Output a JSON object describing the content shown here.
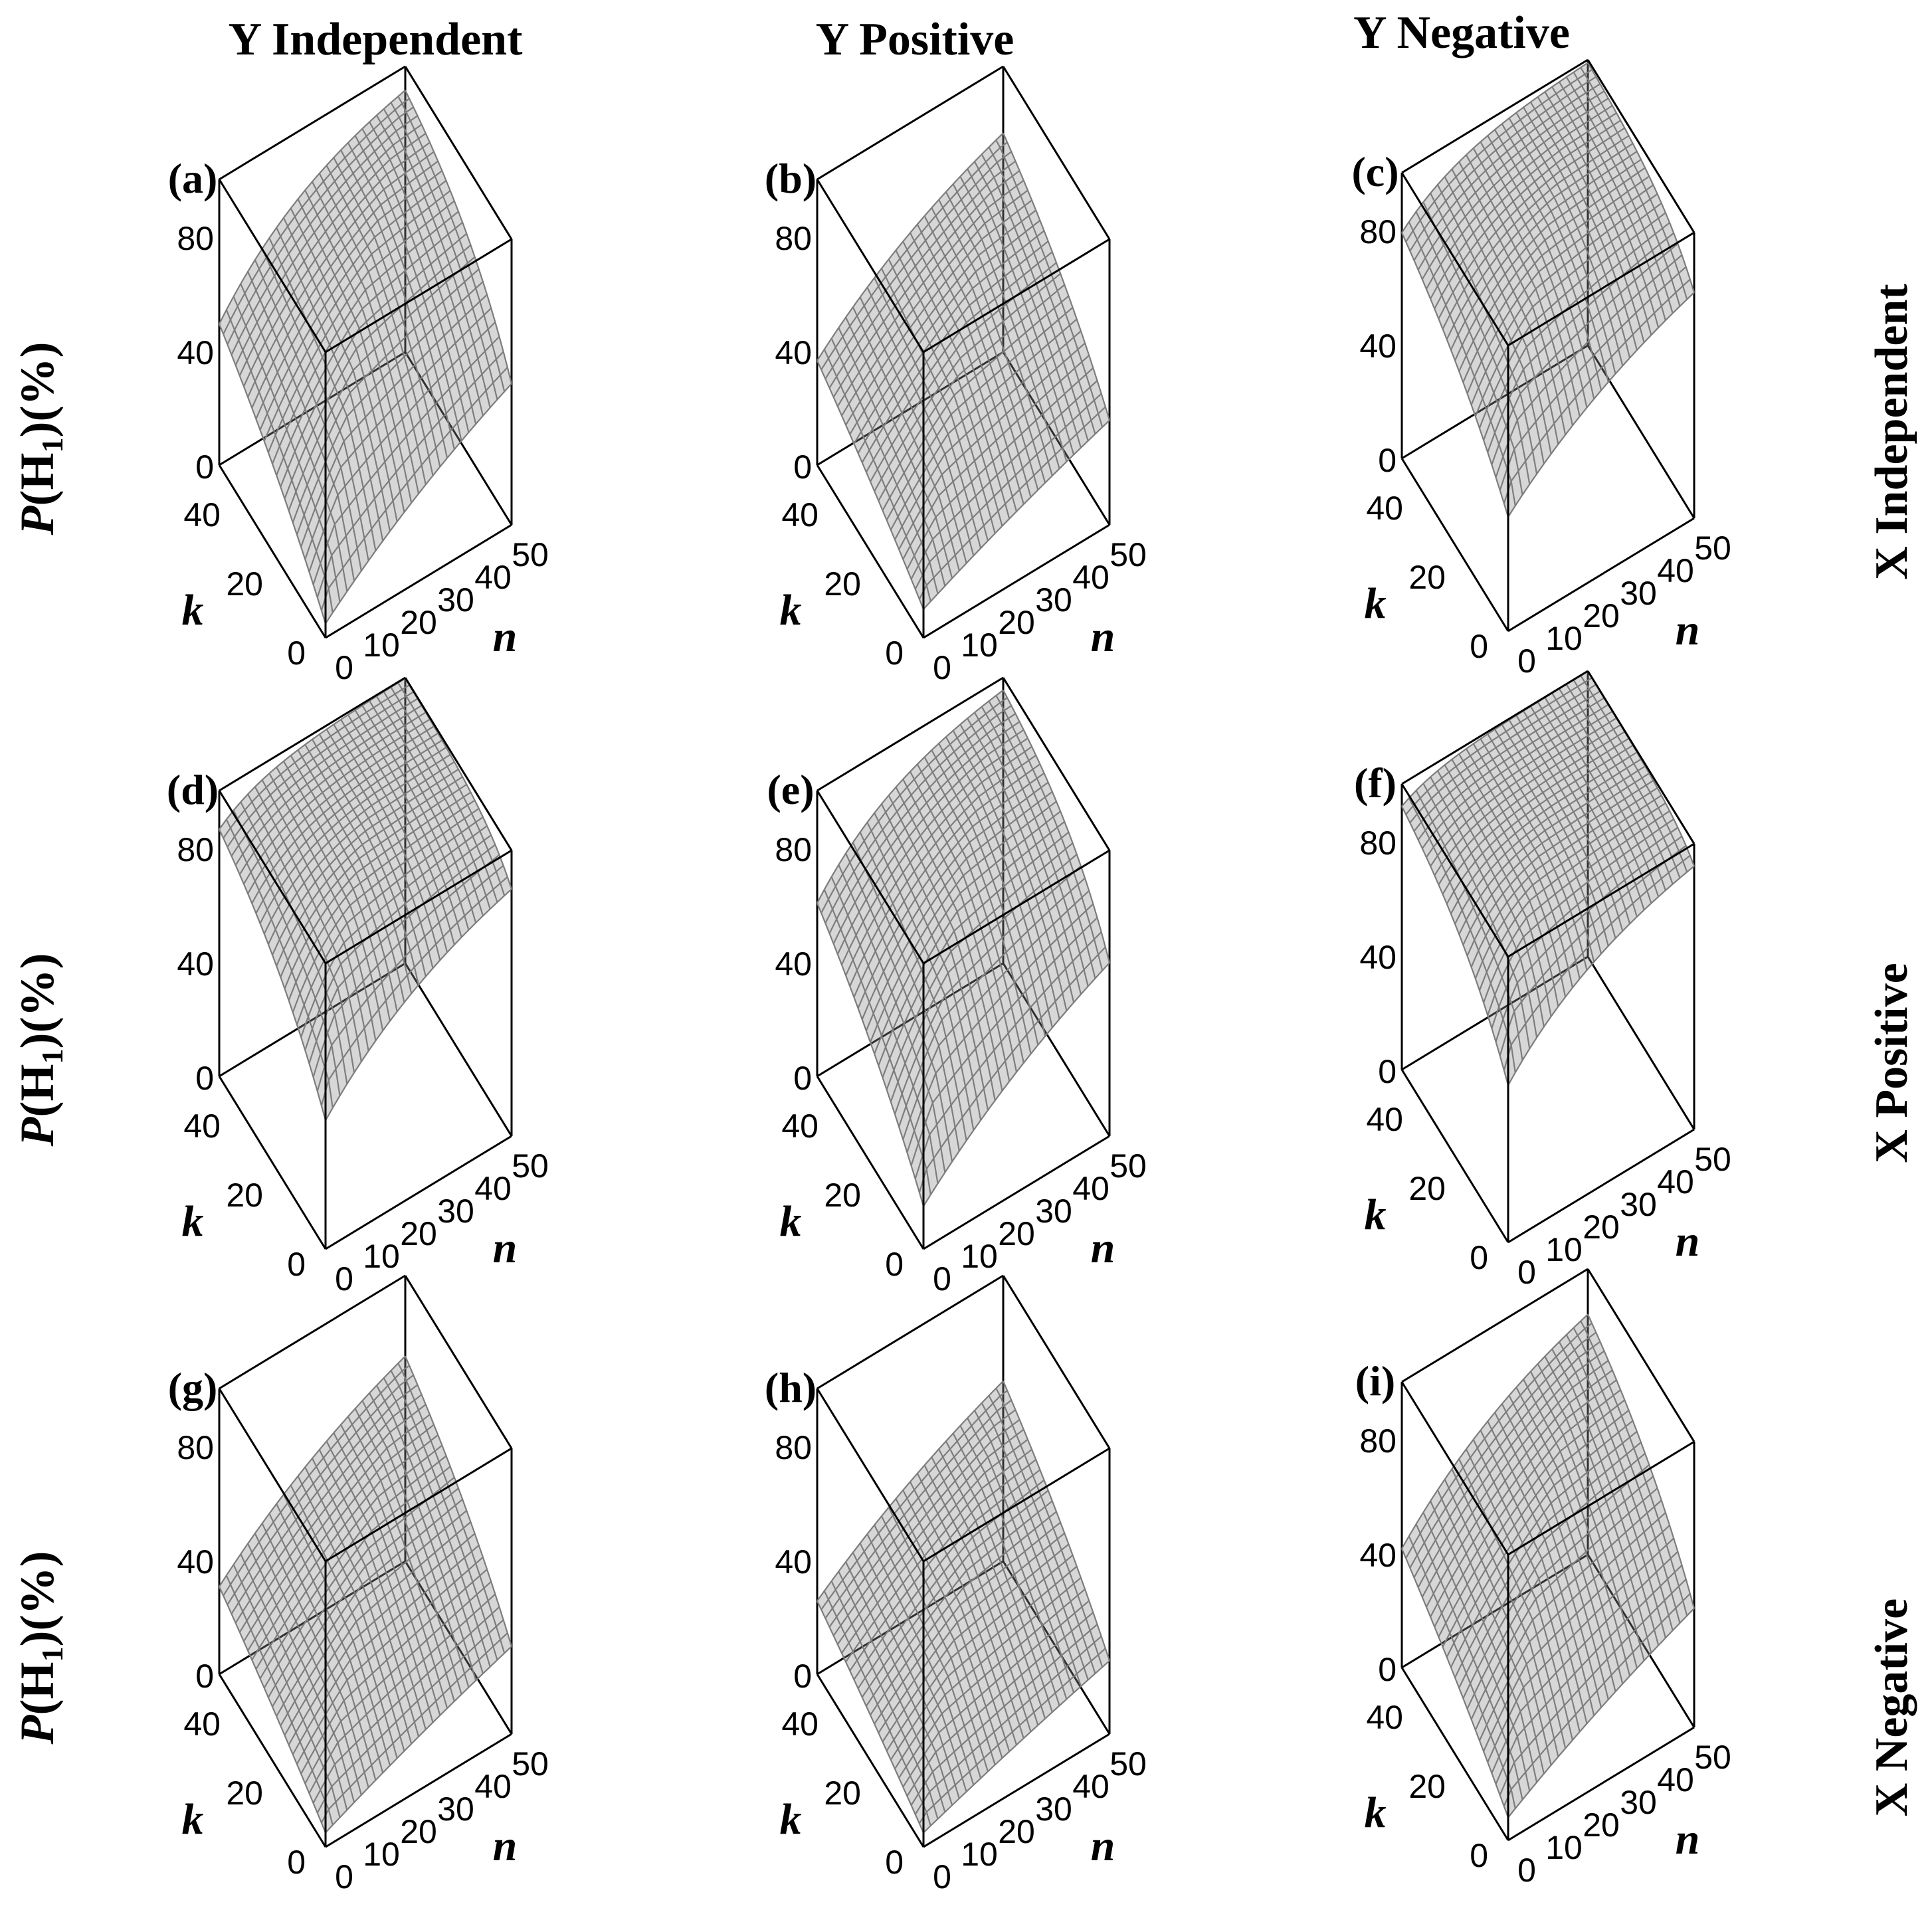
{
  "column_headers": [
    "Y Independent",
    "Y Positive",
    "Y Negative"
  ],
  "row_headers": [
    "X Independent",
    "X Positive",
    "X Negative"
  ],
  "ylabel_prefix": "P",
  "ylabel_open": "(H",
  "ylabel_sub": "1",
  "ylabel_close": ")(%)",
  "k_label": "k",
  "n_label": "n",
  "z_ticks": [
    "80",
    "40",
    "0"
  ],
  "k_ticks": [
    "40",
    "20",
    "0"
  ],
  "n_ticks": [
    "0",
    "10",
    "20",
    "30",
    "40",
    "50"
  ],
  "colors": {
    "surface": "#8c8c8c",
    "mesh": "#7d7d7d",
    "box": "#000000"
  },
  "chart_data": [
    {
      "type": "surface3d",
      "panel": "(a)",
      "column": "Y Independent",
      "row": "X Independent",
      "xlabel": "n",
      "ylabel": "k",
      "zlabel": "P(H1)(%)",
      "xlim": [
        0,
        50
      ],
      "ylim": [
        0,
        50
      ],
      "zlim": [
        0,
        100
      ],
      "min_power_at_origin": 5,
      "saturation_rate": 0.18,
      "plateau": 100
    },
    {
      "type": "surface3d",
      "panel": "(b)",
      "column": "Y Positive",
      "row": "X Independent",
      "xlabel": "n",
      "ylabel": "k",
      "zlabel": "P(H1)(%)",
      "xlim": [
        0,
        50
      ],
      "ylim": [
        0,
        50
      ],
      "zlim": [
        0,
        100
      ],
      "min_power_at_origin": 10,
      "saturation_rate": 0.1,
      "plateau": 100
    },
    {
      "type": "surface3d",
      "panel": "(c)",
      "column": "Y Negative",
      "row": "X Independent",
      "xlabel": "n",
      "ylabel": "k",
      "zlabel": "P(H1)(%)",
      "xlim": [
        0,
        50
      ],
      "ylim": [
        0,
        50
      ],
      "zlim": [
        0,
        100
      ],
      "min_power_at_origin": 40,
      "saturation_rate": 0.3,
      "plateau": 100
    },
    {
      "type": "surface3d",
      "panel": "(d)",
      "column": "Y Independent",
      "row": "X Positive",
      "xlabel": "n",
      "ylabel": "k",
      "zlabel": "P(H1)(%)",
      "xlim": [
        0,
        50
      ],
      "ylim": [
        0,
        50
      ],
      "zlim": [
        0,
        100
      ],
      "min_power_at_origin": 45,
      "saturation_rate": 0.4,
      "plateau": 100
    },
    {
      "type": "surface3d",
      "panel": "(e)",
      "column": "Y Positive",
      "row": "X Positive",
      "xlabel": "n",
      "ylabel": "k",
      "zlabel": "P(H1)(%)",
      "xlim": [
        0,
        50
      ],
      "ylim": [
        0,
        50
      ],
      "zlim": [
        0,
        100
      ],
      "min_power_at_origin": 15,
      "saturation_rate": 0.22,
      "plateau": 100
    },
    {
      "type": "surface3d",
      "panel": "(f)",
      "column": "Y Negative",
      "row": "X Positive",
      "xlabel": "n",
      "ylabel": "k",
      "zlabel": "P(H1)(%)",
      "xlim": [
        0,
        50
      ],
      "ylim": [
        0,
        50
      ],
      "zlim": [
        0,
        100
      ],
      "min_power_at_origin": 55,
      "saturation_rate": 0.5,
      "plateau": 100
    },
    {
      "type": "surface3d",
      "panel": "(g)",
      "column": "Y Independent",
      "row": "X Negative",
      "xlabel": "n",
      "ylabel": "k",
      "zlabel": "P(H1)(%)",
      "xlim": [
        0,
        50
      ],
      "ylim": [
        0,
        50
      ],
      "zlim": [
        0,
        100
      ],
      "min_power_at_origin": 5,
      "saturation_rate": 0.09,
      "plateau": 100
    },
    {
      "type": "surface3d",
      "panel": "(h)",
      "column": "Y Positive",
      "row": "X Negative",
      "xlabel": "n",
      "ylabel": "k",
      "zlabel": "P(H1)(%)",
      "xlim": [
        0,
        50
      ],
      "ylim": [
        0,
        50
      ],
      "zlim": [
        0,
        100
      ],
      "min_power_at_origin": 5,
      "saturation_rate": 0.07,
      "plateau": 100
    },
    {
      "type": "surface3d",
      "panel": "(i)",
      "column": "Y Negative",
      "row": "X Negative",
      "xlabel": "n",
      "ylabel": "k",
      "zlabel": "P(H1)(%)",
      "xlim": [
        0,
        50
      ],
      "ylim": [
        0,
        50
      ],
      "zlim": [
        0,
        100
      ],
      "min_power_at_origin": 8,
      "saturation_rate": 0.13,
      "plateau": 100
    }
  ]
}
